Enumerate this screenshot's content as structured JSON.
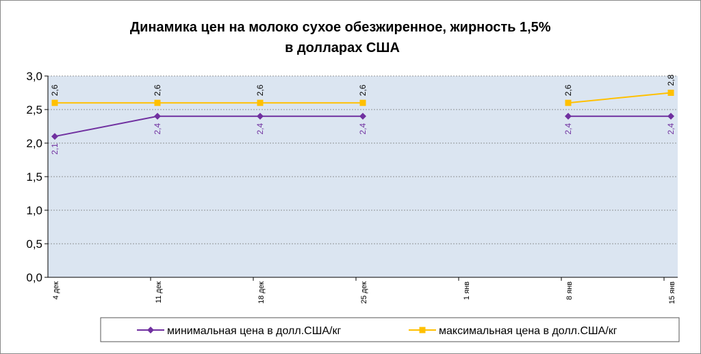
{
  "chart_data": {
    "type": "line",
    "title": "Динамика цен на молоко сухое обезжиренное, жирность 1,5%  в долларах США",
    "categories": [
      "4 дек",
      "11 дек",
      "18 дек",
      "25 дек",
      "1 янв",
      "8 янв",
      "15 янв"
    ],
    "series": [
      {
        "name": "минимальная цена в долл.США/кг",
        "color": "#7030a0",
        "marker": "diamond",
        "values": [
          2.1,
          2.4,
          2.4,
          2.4,
          null,
          2.4,
          2.4
        ],
        "value_labels": [
          "2,1",
          "2,4",
          "2,4",
          "2,4",
          null,
          "2,4",
          "2,4"
        ]
      },
      {
        "name": "максимальная цена в долл.США/кг",
        "color": "#ffc000",
        "marker": "square",
        "values": [
          2.6,
          2.6,
          2.6,
          2.6,
          null,
          2.6,
          2.75
        ],
        "value_labels": [
          "2,6",
          "2,6",
          "2,6",
          "2,6",
          null,
          "2,6",
          "2,8"
        ]
      }
    ],
    "ylim": [
      0,
      3
    ],
    "yticks": [
      {
        "value": 0,
        "label": "0,0"
      },
      {
        "value": 0.5,
        "label": "0,5"
      },
      {
        "value": 1,
        "label": "1,0"
      },
      {
        "value": 1.5,
        "label": "1,5"
      },
      {
        "value": 2,
        "label": "2,0"
      },
      {
        "value": 2.5,
        "label": "2,5"
      },
      {
        "value": 3,
        "label": "3,0"
      }
    ],
    "grid": true,
    "legend": "bottom"
  }
}
